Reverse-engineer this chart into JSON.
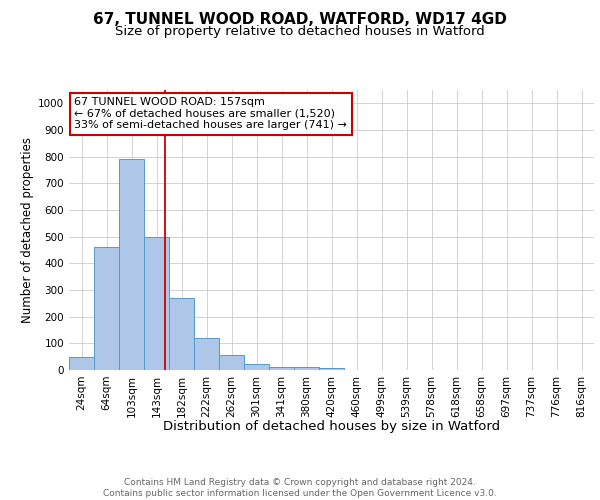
{
  "title1": "67, TUNNEL WOOD ROAD, WATFORD, WD17 4GD",
  "title2": "Size of property relative to detached houses in Watford",
  "xlabel": "Distribution of detached houses by size in Watford",
  "ylabel": "Number of detached properties",
  "bar_labels": [
    "24sqm",
    "64sqm",
    "103sqm",
    "143sqm",
    "182sqm",
    "222sqm",
    "262sqm",
    "301sqm",
    "341sqm",
    "380sqm",
    "420sqm",
    "460sqm",
    "499sqm",
    "539sqm",
    "578sqm",
    "618sqm",
    "658sqm",
    "697sqm",
    "737sqm",
    "776sqm",
    "816sqm"
  ],
  "bar_heights": [
    50,
    460,
    790,
    500,
    270,
    120,
    55,
    22,
    12,
    12,
    8,
    0,
    0,
    0,
    0,
    0,
    0,
    0,
    0,
    0,
    0
  ],
  "bar_color": "#aec6e8",
  "bar_edge_color": "#5599cc",
  "annotation_line1": "67 TUNNEL WOOD ROAD: 157sqm",
  "annotation_line2": "← 67% of detached houses are smaller (1,520)",
  "annotation_line3": "33% of semi-detached houses are larger (741) →",
  "vline_color": "#cc0000",
  "annotation_box_color": "#ffffff",
  "annotation_box_edge_color": "#cc0000",
  "ylim": [
    0,
    1050
  ],
  "yticks": [
    0,
    100,
    200,
    300,
    400,
    500,
    600,
    700,
    800,
    900,
    1000
  ],
  "footnote": "Contains HM Land Registry data © Crown copyright and database right 2024.\nContains public sector information licensed under the Open Government Licence v3.0.",
  "bg_color": "#ffffff",
  "grid_color": "#cccccc",
  "title1_fontsize": 11,
  "title2_fontsize": 9.5,
  "xlabel_fontsize": 9.5,
  "ylabel_fontsize": 8.5,
  "tick_fontsize": 7.5,
  "annotation_fontsize": 8,
  "footnote_fontsize": 6.5
}
